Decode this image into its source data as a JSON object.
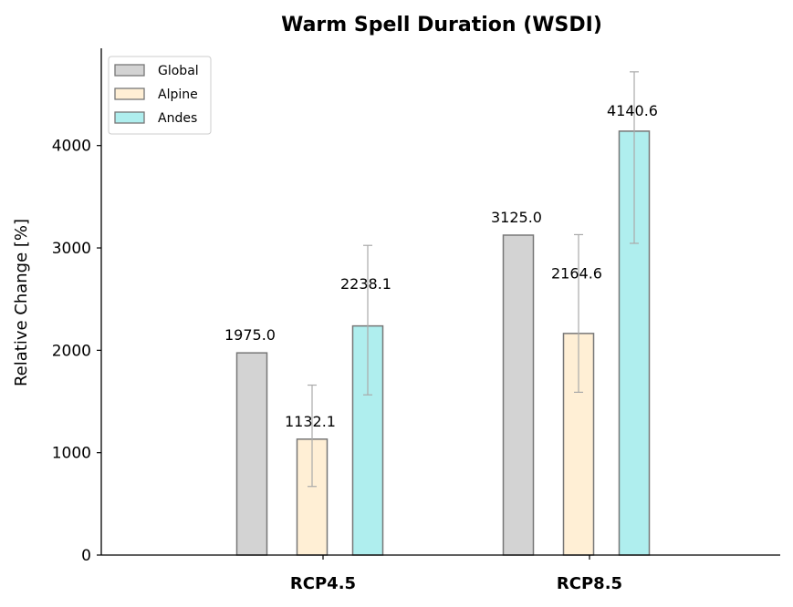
{
  "chart_data": {
    "type": "bar",
    "title": "Warm Spell Duration (WSDI)",
    "xlabel": "",
    "ylabel": "Relative Change [%]",
    "categories": [
      "RCP4.5",
      "RCP8.5"
    ],
    "ylim": [
      0,
      4950
    ],
    "yticks": [
      0,
      1000,
      2000,
      3000,
      4000
    ],
    "grid": false,
    "legend_position": "top-left",
    "series": [
      {
        "name": "Global",
        "color": "#d3d3d3",
        "values": [
          1975.0,
          3125.0
        ],
        "labels": [
          "1975.0",
          "3125.0"
        ],
        "errors": [
          null,
          null
        ]
      },
      {
        "name": "Alpine",
        "color": "#ffefd5",
        "values": [
          1132.1,
          2164.6
        ],
        "labels": [
          "1132.1",
          "2164.6"
        ],
        "errors": [
          [
            670,
            1660
          ],
          [
            1590,
            3130
          ]
        ]
      },
      {
        "name": "Andes",
        "color": "#afeeee",
        "values": [
          2238.1,
          4140.6
        ],
        "labels": [
          "2238.1",
          "4140.6"
        ],
        "errors": [
          [
            1565,
            3025
          ],
          [
            3045,
            4720
          ]
        ]
      }
    ]
  }
}
